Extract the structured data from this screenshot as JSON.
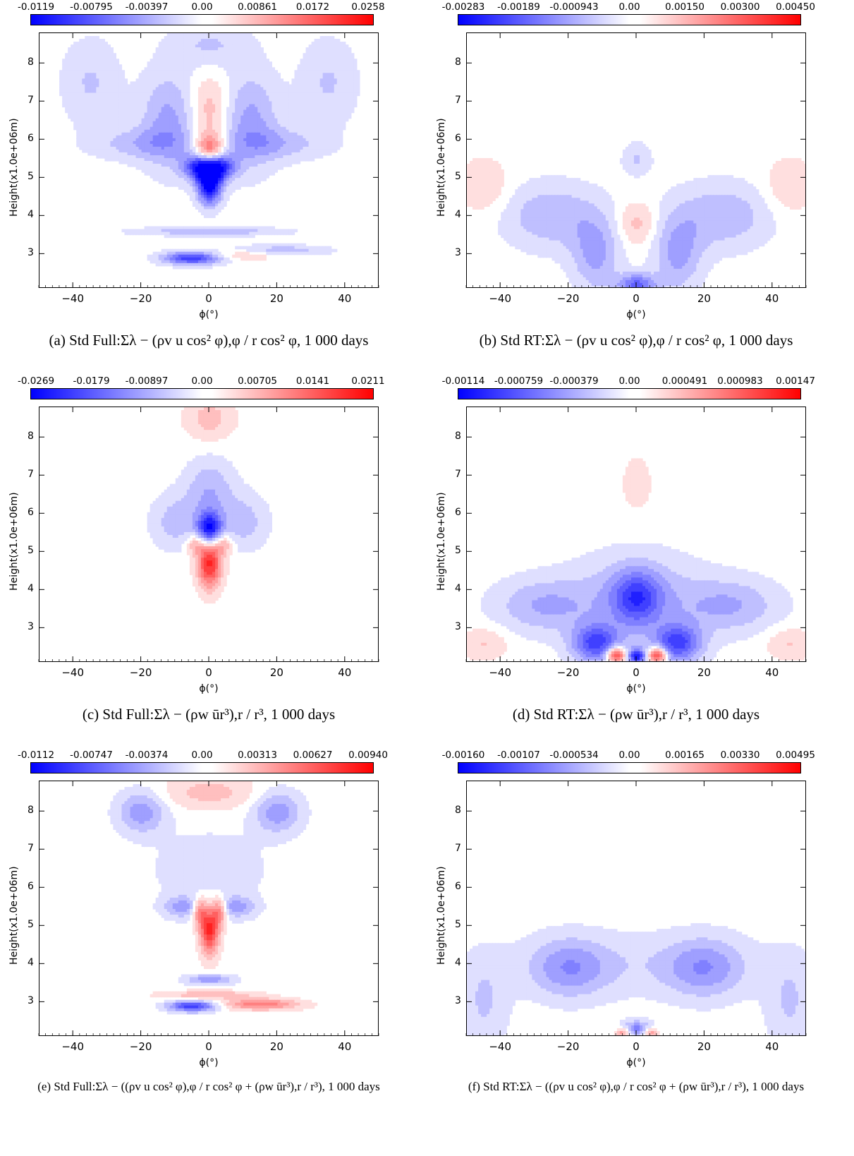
{
  "chart_data": [
    {
      "type": "heatmap",
      "title": "",
      "caption": "(a) Std Full:Σλ − (ρv u cos² φ),φ / r cos² φ, 1 000 days",
      "colorbar_ticks": [
        "-0.0119",
        "-0.00795",
        "-0.00397",
        "0.00",
        "0.00861",
        "0.0172",
        "0.0258"
      ],
      "xlabel": "ϕ(°)",
      "ylabel": "Height(x1.0e+06m)",
      "xticks": [
        -40,
        -20,
        0,
        20,
        40
      ],
      "yticks": [
        3,
        4,
        5,
        6,
        7,
        8
      ],
      "xlim": [
        -50,
        50
      ],
      "ylim": [
        2.1,
        8.8
      ],
      "features": [
        {
          "x": 0,
          "y": 4.8,
          "sx": 2.5,
          "sy": 0.35,
          "v": -1.0
        },
        {
          "x": -1.5,
          "y": 5.3,
          "sx": 4,
          "sy": 0.25,
          "v": -0.85
        },
        {
          "x": 1.5,
          "y": 5.3,
          "sx": 4,
          "sy": 0.25,
          "v": -0.85
        },
        {
          "x": 0,
          "y": 5.6,
          "sx": 3,
          "sy": 0.35,
          "v": 0.9
        },
        {
          "x": 0,
          "y": 6.8,
          "sx": 4,
          "sy": 0.6,
          "v": 0.3
        },
        {
          "x": -12,
          "y": 6.5,
          "sx": 6,
          "sy": 0.9,
          "v": -0.35
        },
        {
          "x": 12,
          "y": 6.5,
          "sx": 6,
          "sy": 0.9,
          "v": -0.35
        },
        {
          "x": -20,
          "y": 5.9,
          "sx": 10,
          "sy": 0.3,
          "v": -0.25
        },
        {
          "x": 20,
          "y": 5.9,
          "sx": 10,
          "sy": 0.3,
          "v": -0.25
        },
        {
          "x": 0,
          "y": 8.5,
          "sx": 8,
          "sy": 0.4,
          "v": -0.2
        },
        {
          "x": -5,
          "y": 2.9,
          "sx": 6,
          "sy": 0.12,
          "v": -0.8
        },
        {
          "x": 20,
          "y": 3.1,
          "sx": 10,
          "sy": 0.1,
          "v": -0.3
        },
        {
          "x": 10,
          "y": 3.0,
          "sx": 8,
          "sy": 0.1,
          "v": 0.25
        },
        {
          "x": 0,
          "y": 3.6,
          "sx": 15,
          "sy": 0.08,
          "v": -0.3
        },
        {
          "x": -35,
          "y": 7.5,
          "sx": 6,
          "sy": 0.8,
          "v": -0.2
        },
        {
          "x": 35,
          "y": 7.5,
          "sx": 6,
          "sy": 0.8,
          "v": -0.2
        }
      ]
    },
    {
      "type": "heatmap",
      "title": "",
      "caption": "(b) Std RT:Σλ − (ρv u cos² φ),φ / r cos² φ, 1 000 days",
      "colorbar_ticks": [
        "-0.00283",
        "-0.00189",
        "-0.000943",
        "0.00",
        "0.00150",
        "0.00300",
        "0.00450"
      ],
      "xlabel": "ϕ(°)",
      "ylabel": "Height(x1.0e+06m)",
      "xticks": [
        -40,
        -20,
        0,
        20,
        40
      ],
      "yticks": [
        3,
        4,
        5,
        6,
        7,
        8
      ],
      "xlim": [
        -50,
        50
      ],
      "ylim": [
        2.1,
        8.8
      ],
      "features": [
        {
          "x": -12,
          "y": 3.0,
          "sx": 5,
          "sy": 0.7,
          "v": -0.35
        },
        {
          "x": 12,
          "y": 3.0,
          "sx": 5,
          "sy": 0.7,
          "v": -0.35
        },
        {
          "x": -25,
          "y": 4.0,
          "sx": 10,
          "sy": 0.6,
          "v": -0.3
        },
        {
          "x": 25,
          "y": 4.0,
          "sx": 10,
          "sy": 0.6,
          "v": -0.3
        },
        {
          "x": 0,
          "y": 3.8,
          "sx": 4,
          "sy": 0.4,
          "v": 0.25
        },
        {
          "x": 0,
          "y": 2.2,
          "sx": 4,
          "sy": 0.2,
          "v": -0.6
        },
        {
          "x": -45,
          "y": 4.8,
          "sx": 5,
          "sy": 0.5,
          "v": 0.2
        },
        {
          "x": 45,
          "y": 4.8,
          "sx": 5,
          "sy": 0.5,
          "v": 0.2
        },
        {
          "x": 0,
          "y": 5.5,
          "sx": 3,
          "sy": 0.3,
          "v": -0.2
        }
      ]
    },
    {
      "type": "heatmap",
      "title": "",
      "caption": "(c) Std Full:Σλ − (ρw ūr³),r / r³, 1 000 days",
      "colorbar_ticks": [
        "-0.0269",
        "-0.0179",
        "-0.00897",
        "0.00",
        "0.00705",
        "0.0141",
        "0.0211"
      ],
      "xlabel": "ϕ(°)",
      "ylabel": "Height(x1.0e+06m)",
      "xticks": [
        -40,
        -20,
        0,
        20,
        40
      ],
      "yticks": [
        3,
        4,
        5,
        6,
        7,
        8
      ],
      "xlim": [
        -50,
        50
      ],
      "ylim": [
        2.1,
        8.8
      ],
      "features": [
        {
          "x": 0,
          "y": 5.6,
          "sx": 2.5,
          "sy": 0.3,
          "v": -0.95
        },
        {
          "x": 0,
          "y": 4.7,
          "sx": 2.5,
          "sy": 0.45,
          "v": 0.85
        },
        {
          "x": 0,
          "y": 6.6,
          "sx": 5,
          "sy": 0.6,
          "v": -0.3
        },
        {
          "x": -10,
          "y": 5.8,
          "sx": 5,
          "sy": 0.5,
          "v": -0.25
        },
        {
          "x": 10,
          "y": 5.8,
          "sx": 5,
          "sy": 0.5,
          "v": -0.25
        },
        {
          "x": 0,
          "y": 8.5,
          "sx": 5,
          "sy": 0.4,
          "v": 0.25
        },
        {
          "x": -4,
          "y": 5.2,
          "sx": 2,
          "sy": 0.2,
          "v": 0.35
        },
        {
          "x": 4,
          "y": 5.2,
          "sx": 2,
          "sy": 0.2,
          "v": 0.35
        }
      ]
    },
    {
      "type": "heatmap",
      "title": "",
      "caption": "(d) Std RT:Σλ − (ρw ūr³),r / r³, 1 000 days",
      "colorbar_ticks": [
        "-0.00114",
        "-0.000759",
        "-0.000379",
        "0.00",
        "0.000491",
        "0.000983",
        "0.00147"
      ],
      "xlabel": "ϕ(°)",
      "ylabel": "Height(x1.0e+06m)",
      "xticks": [
        -40,
        -20,
        0,
        20,
        40
      ],
      "yticks": [
        3,
        4,
        5,
        6,
        7,
        8
      ],
      "xlim": [
        -50,
        50
      ],
      "ylim": [
        2.1,
        8.8
      ],
      "features": [
        {
          "x": 0,
          "y": 3.8,
          "sx": 5,
          "sy": 0.5,
          "v": -0.55
        },
        {
          "x": 0,
          "y": 3.8,
          "sx": 14,
          "sy": 0.8,
          "v": -0.3
        },
        {
          "x": -12,
          "y": 2.6,
          "sx": 5,
          "sy": 0.35,
          "v": -0.7
        },
        {
          "x": 12,
          "y": 2.6,
          "sx": 5,
          "sy": 0.35,
          "v": -0.7
        },
        {
          "x": -6,
          "y": 2.3,
          "sx": 2,
          "sy": 0.15,
          "v": 0.95
        },
        {
          "x": 6,
          "y": 2.3,
          "sx": 2,
          "sy": 0.15,
          "v": 0.95
        },
        {
          "x": 0,
          "y": 2.25,
          "sx": 2,
          "sy": 0.15,
          "v": -0.8
        },
        {
          "x": -28,
          "y": 3.6,
          "sx": 10,
          "sy": 0.5,
          "v": -0.3
        },
        {
          "x": 28,
          "y": 3.6,
          "sx": 10,
          "sy": 0.5,
          "v": -0.3
        },
        {
          "x": 0,
          "y": 6.8,
          "sx": 3,
          "sy": 0.5,
          "v": 0.15
        },
        {
          "x": -45,
          "y": 2.6,
          "sx": 5,
          "sy": 0.3,
          "v": 0.2
        },
        {
          "x": 45,
          "y": 2.6,
          "sx": 5,
          "sy": 0.3,
          "v": 0.2
        }
      ]
    },
    {
      "type": "heatmap",
      "title": "",
      "caption": "(e) Std Full:Σλ − ((ρv u cos² φ),φ / r cos² φ + (ρw ūr³),r / r³), 1 000 days",
      "colorbar_ticks": [
        "-0.0112",
        "-0.00747",
        "-0.00374",
        "0.00",
        "0.00313",
        "0.00627",
        "0.00940"
      ],
      "xlabel": "ϕ(°)",
      "ylabel": "Height(x1.0e+06m)",
      "xticks": [
        -40,
        -20,
        0,
        20,
        40
      ],
      "yticks": [
        3,
        4,
        5,
        6,
        7,
        8
      ],
      "xlim": [
        -50,
        50
      ],
      "ylim": [
        2.1,
        8.8
      ],
      "features": [
        {
          "x": 0,
          "y": 4.9,
          "sx": 2,
          "sy": 0.45,
          "v": 0.85
        },
        {
          "x": -3,
          "y": 5.4,
          "sx": 1.5,
          "sy": 0.25,
          "v": 0.5
        },
        {
          "x": 3,
          "y": 5.4,
          "sx": 1.5,
          "sy": 0.25,
          "v": 0.5
        },
        {
          "x": -8,
          "y": 5.5,
          "sx": 4,
          "sy": 0.2,
          "v": -0.35
        },
        {
          "x": 8,
          "y": 5.5,
          "sx": 4,
          "sy": 0.2,
          "v": -0.35
        },
        {
          "x": -5,
          "y": 2.9,
          "sx": 5,
          "sy": 0.1,
          "v": -0.8
        },
        {
          "x": 15,
          "y": 2.95,
          "sx": 8,
          "sy": 0.1,
          "v": 0.55
        },
        {
          "x": 0,
          "y": 3.6,
          "sx": 5,
          "sy": 0.1,
          "v": -0.4
        },
        {
          "x": 0,
          "y": 3.2,
          "sx": 10,
          "sy": 0.08,
          "v": 0.3
        },
        {
          "x": -20,
          "y": 8.0,
          "sx": 5,
          "sy": 0.4,
          "v": -0.4
        },
        {
          "x": 20,
          "y": 8.0,
          "sx": 5,
          "sy": 0.4,
          "v": -0.4
        },
        {
          "x": 0,
          "y": 8.5,
          "sx": 10,
          "sy": 0.3,
          "v": 0.25
        },
        {
          "x": 0,
          "y": 6.5,
          "sx": 12,
          "sy": 0.7,
          "v": -0.15
        }
      ]
    },
    {
      "type": "heatmap",
      "title": "",
      "caption": "(f) Std RT:Σλ − ((ρv u cos² φ),φ / r cos² φ + (ρw ūr³),r / r³), 1 000 days",
      "colorbar_ticks": [
        "-0.00160",
        "-0.00107",
        "-0.000534",
        "0.00",
        "0.00165",
        "0.00330",
        "0.00495"
      ],
      "xlabel": "ϕ(°)",
      "ylabel": "Height(x1.0e+06m)",
      "xticks": [
        -40,
        -20,
        0,
        20,
        40
      ],
      "yticks": [
        3,
        4,
        5,
        6,
        7,
        8
      ],
      "xlim": [
        -50,
        50
      ],
      "ylim": [
        2.1,
        8.8
      ],
      "features": [
        {
          "x": -20,
          "y": 3.9,
          "sx": 8,
          "sy": 0.55,
          "v": -0.35
        },
        {
          "x": 20,
          "y": 3.9,
          "sx": 8,
          "sy": 0.55,
          "v": -0.35
        },
        {
          "x": 0,
          "y": 4.0,
          "sx": 25,
          "sy": 0.6,
          "v": -0.15
        },
        {
          "x": 0,
          "y": 2.3,
          "sx": 3,
          "sy": 0.15,
          "v": -0.5
        },
        {
          "x": -4,
          "y": 2.2,
          "sx": 1.5,
          "sy": 0.1,
          "v": 0.5
        },
        {
          "x": 4,
          "y": 2.2,
          "sx": 1.5,
          "sy": 0.1,
          "v": 0.5
        },
        {
          "x": -45,
          "y": 3.0,
          "sx": 5,
          "sy": 0.9,
          "v": -0.2
        },
        {
          "x": 45,
          "y": 3.0,
          "sx": 5,
          "sy": 0.9,
          "v": -0.2
        }
      ]
    }
  ]
}
